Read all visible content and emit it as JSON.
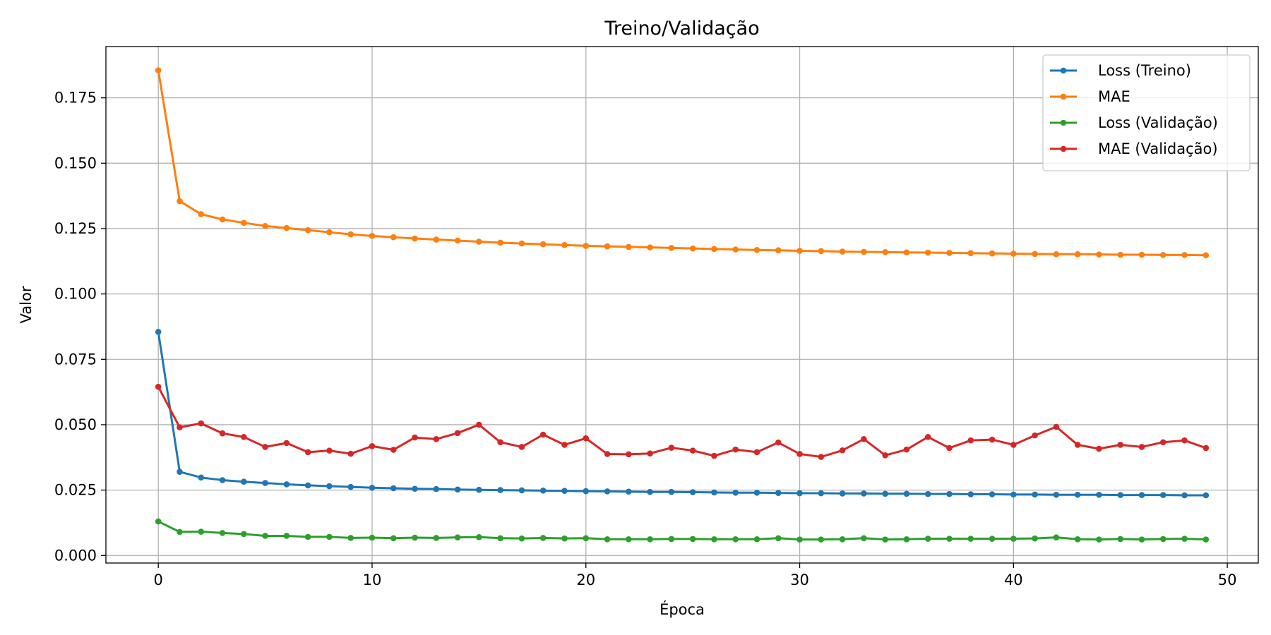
{
  "chart_data": {
    "type": "line",
    "title": "Treino/Validação",
    "xlabel": "Época",
    "ylabel": "Valor",
    "xlim": [
      -2.45,
      51.45
    ],
    "ylim": [
      -0.0029,
      0.1946
    ],
    "xticks": [
      0,
      10,
      20,
      30,
      40,
      50
    ],
    "xtick_labels": [
      "0",
      "10",
      "20",
      "30",
      "40",
      "50"
    ],
    "yticks": [
      0.0,
      0.025,
      0.05,
      0.075,
      0.1,
      0.125,
      0.15,
      0.175
    ],
    "ytick_labels": [
      "0.000",
      "0.025",
      "0.050",
      "0.075",
      "0.100",
      "0.125",
      "0.150",
      "0.175"
    ],
    "grid": true,
    "legend_position": "top-right",
    "x": [
      0,
      1,
      2,
      3,
      4,
      5,
      6,
      7,
      8,
      9,
      10,
      11,
      12,
      13,
      14,
      15,
      16,
      17,
      18,
      19,
      20,
      21,
      22,
      23,
      24,
      25,
      26,
      27,
      28,
      29,
      30,
      31,
      32,
      33,
      34,
      35,
      36,
      37,
      38,
      39,
      40,
      41,
      42,
      43,
      44,
      45,
      46,
      47,
      48,
      49
    ],
    "series": [
      {
        "name": "Loss (Treino)",
        "color": "#1f77b4",
        "values": [
          0.0855,
          0.032,
          0.0298,
          0.0288,
          0.0282,
          0.0277,
          0.0272,
          0.0268,
          0.0265,
          0.0262,
          0.0259,
          0.0257,
          0.0255,
          0.0254,
          0.0252,
          0.0251,
          0.025,
          0.0249,
          0.0248,
          0.0247,
          0.0246,
          0.0245,
          0.0244,
          0.0243,
          0.0243,
          0.0242,
          0.0241,
          0.024,
          0.024,
          0.0239,
          0.0238,
          0.0238,
          0.0237,
          0.0237,
          0.0236,
          0.0236,
          0.0235,
          0.0235,
          0.0234,
          0.0234,
          0.0233,
          0.0233,
          0.0232,
          0.0232,
          0.0232,
          0.0231,
          0.0231,
          0.0231,
          0.023,
          0.023
        ]
      },
      {
        "name": "MAE",
        "color": "#ff7f0e",
        "values": [
          0.1855,
          0.1355,
          0.1305,
          0.1285,
          0.1272,
          0.126,
          0.1252,
          0.1244,
          0.1236,
          0.1228,
          0.1222,
          0.1217,
          0.1212,
          0.1208,
          0.1204,
          0.12,
          0.1196,
          0.1193,
          0.119,
          0.1187,
          0.1184,
          0.1182,
          0.118,
          0.1178,
          0.1176,
          0.1174,
          0.1172,
          0.117,
          0.1168,
          0.1167,
          0.1165,
          0.1164,
          0.1162,
          0.1161,
          0.116,
          0.1159,
          0.1158,
          0.1157,
          0.1156,
          0.1155,
          0.1154,
          0.1153,
          0.1152,
          0.1152,
          0.1151,
          0.115,
          0.115,
          0.1149,
          0.1149,
          0.1148
        ]
      },
      {
        "name": "Loss (Validação)",
        "color": "#2ca02c",
        "values": [
          0.013,
          0.009,
          0.0091,
          0.0086,
          0.0082,
          0.0075,
          0.0075,
          0.0071,
          0.0071,
          0.0067,
          0.0068,
          0.0066,
          0.0068,
          0.0067,
          0.0069,
          0.007,
          0.0066,
          0.0065,
          0.0067,
          0.0065,
          0.0066,
          0.0062,
          0.0062,
          0.0062,
          0.0063,
          0.0063,
          0.0062,
          0.0062,
          0.0062,
          0.0066,
          0.0061,
          0.0061,
          0.0062,
          0.0066,
          0.0061,
          0.0062,
          0.0064,
          0.0064,
          0.0064,
          0.0064,
          0.0064,
          0.0065,
          0.0069,
          0.0062,
          0.0061,
          0.0063,
          0.0061,
          0.0063,
          0.0064,
          0.0061
        ]
      },
      {
        "name": "MAE (Validação)",
        "color": "#d62728",
        "values": [
          0.0645,
          0.049,
          0.0505,
          0.0467,
          0.0453,
          0.0415,
          0.043,
          0.0395,
          0.0401,
          0.0389,
          0.0418,
          0.0404,
          0.0451,
          0.0445,
          0.0468,
          0.05,
          0.0433,
          0.0415,
          0.0462,
          0.0423,
          0.0448,
          0.0388,
          0.0387,
          0.039,
          0.0412,
          0.0401,
          0.0381,
          0.0405,
          0.0395,
          0.0432,
          0.0388,
          0.0377,
          0.0402,
          0.0445,
          0.0383,
          0.0405,
          0.0453,
          0.0411,
          0.044,
          0.0443,
          0.0423,
          0.0459,
          0.0492,
          0.0423,
          0.0408,
          0.0423,
          0.0415,
          0.0433,
          0.044,
          0.0411
        ]
      }
    ]
  }
}
